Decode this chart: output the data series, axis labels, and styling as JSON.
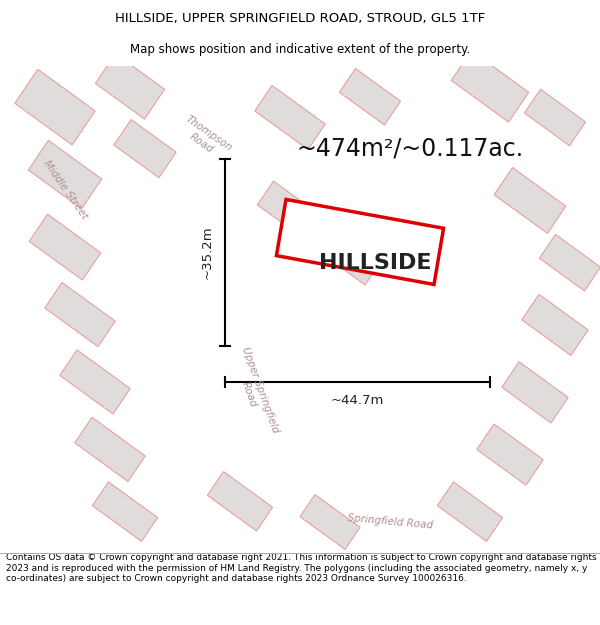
{
  "title_line1": "HILLSIDE, UPPER SPRINGFIELD ROAD, STROUD, GL5 1TF",
  "title_line2": "Map shows position and indicative extent of the property.",
  "property_label": "HILLSIDE",
  "area_label": "~474m²/~0.117ac.",
  "dim_width": "~44.7m",
  "dim_height": "~35.2m",
  "bg_map_color": "#f0eded",
  "road_color": "#ffffff",
  "building_fill": "#e0dcdc",
  "building_outline": "#e8a0a0",
  "highlight_fill": "#ffffff",
  "highlight_outline": "#dd0000",
  "street_label_color": "#b09090",
  "footer_text": "Contains OS data © Crown copyright and database right 2021. This information is subject to Crown copyright and database rights 2023 and is reproduced with the permission of HM Land Registry. The polygons (including the associated geometry, namely x, y co-ordinates) are subject to Crown copyright and database rights 2023 Ordnance Survey 100026316.",
  "title_fontsize": 9.5,
  "subtitle_fontsize": 8.5,
  "area_fontsize": 17,
  "property_fontsize": 16,
  "footer_fontsize": 6.5,
  "road_label_fontsize": 7.5,
  "dim_fontsize": 9.5
}
